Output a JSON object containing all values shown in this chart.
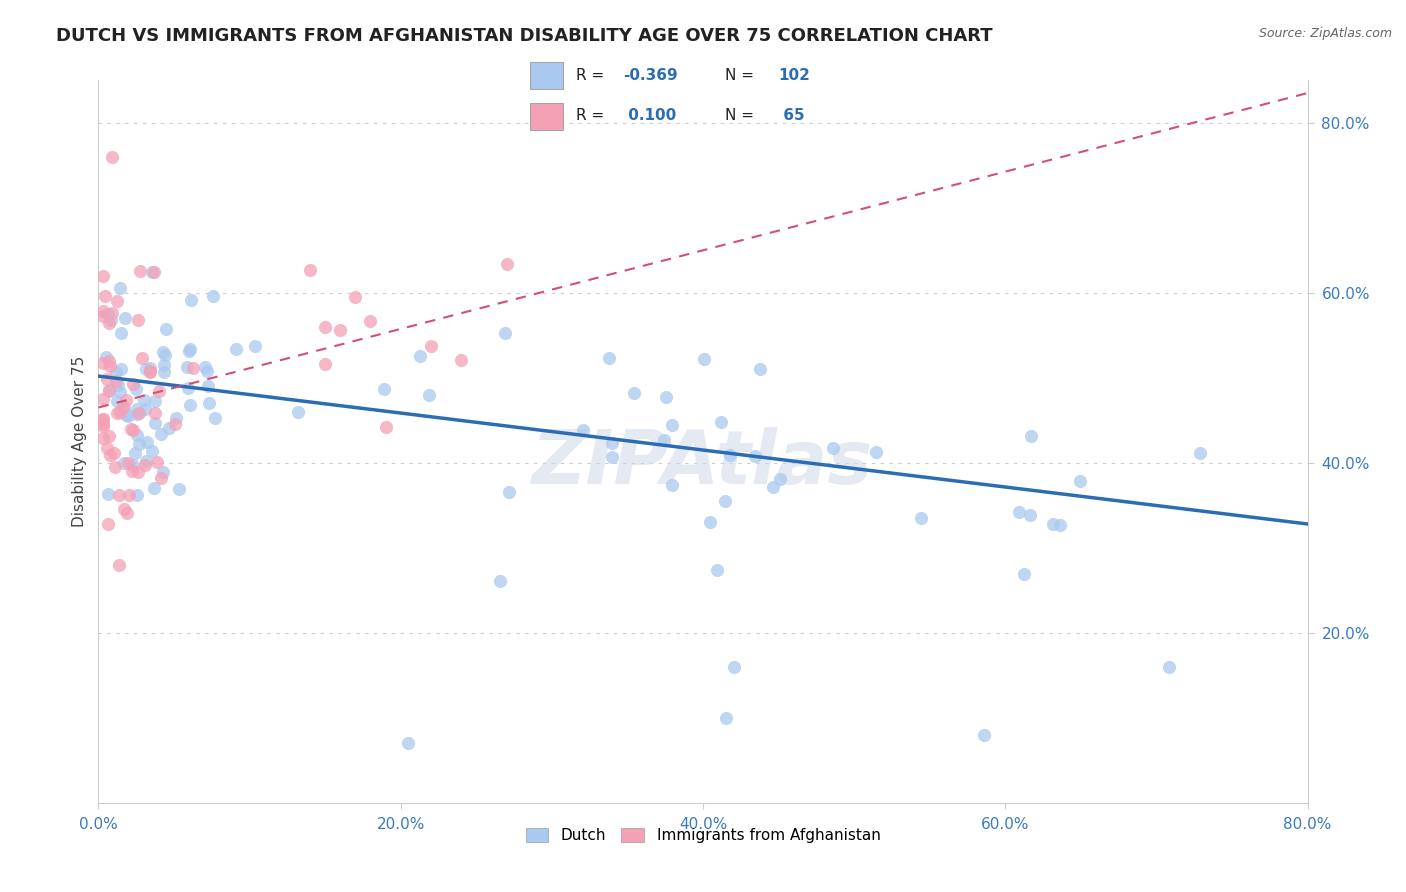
{
  "title": "DUTCH VS IMMIGRANTS FROM AFGHANISTAN DISABILITY AGE OVER 75 CORRELATION CHART",
  "source": "Source: ZipAtlas.com",
  "ylabel": "Disability Age Over 75",
  "xlim": [
    0.0,
    0.8
  ],
  "ylim": [
    0.0,
    0.85
  ],
  "xtick_labels": [
    "0.0%",
    "20.0%",
    "40.0%",
    "60.0%",
    "80.0%"
  ],
  "xtick_vals": [
    0.0,
    0.2,
    0.4,
    0.6,
    0.8
  ],
  "ytick_labels": [
    "20.0%",
    "40.0%",
    "60.0%",
    "80.0%"
  ],
  "ytick_vals": [
    0.2,
    0.4,
    0.6,
    0.8
  ],
  "dutch_color": "#aac9f0",
  "afghan_color": "#f4a0b5",
  "dutch_line_color": "#2a6db5",
  "afghan_line_color": "#d45070",
  "dutch_R": -0.369,
  "dutch_N": 102,
  "afghan_R": 0.1,
  "afghan_N": 65,
  "legend_dutch": "Dutch",
  "legend_afghan": "Immigrants from Afghanistan",
  "watermark": "ZIPAtlas",
  "dutch_trend_x0": 0.0,
  "dutch_trend_y0": 0.502,
  "dutch_trend_x1": 0.8,
  "dutch_trend_y1": 0.328,
  "afghan_trend_x0": 0.0,
  "afghan_trend_y0": 0.465,
  "afghan_trend_x1": 0.8,
  "afghan_trend_y1": 0.835
}
